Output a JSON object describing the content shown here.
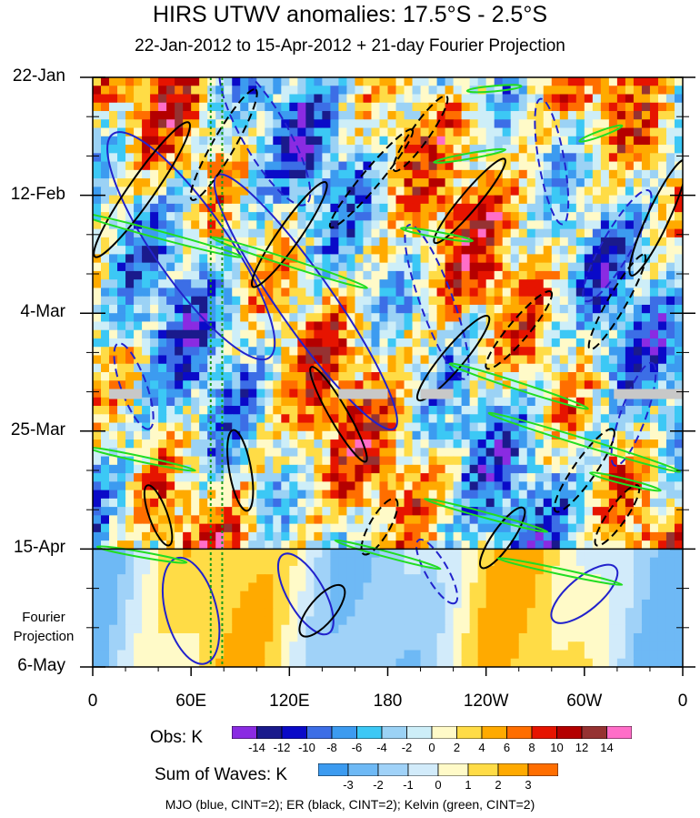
{
  "chart_data": {
    "type": "heatmap",
    "title": "HIRS UTWV anomalies: 17.5°S - 2.5°S",
    "subtitle": "22-Jan-2012 to 15-Apr-2012 + 21-day Fourier Projection",
    "y_tick_labels": [
      "22-Jan",
      "12-Feb",
      "4-Mar",
      "25-Mar",
      "15-Apr",
      "6-May"
    ],
    "x_tick_labels": [
      "0",
      "60E",
      "120E",
      "180",
      "120W",
      "60W",
      "0"
    ],
    "x_range_deg": [
      0,
      360
    ],
    "y_range_days": [
      0,
      105
    ],
    "y_tick_days": [
      0,
      21,
      42,
      63,
      84,
      105
    ],
    "x_tick_deg": [
      0,
      60,
      120,
      180,
      240,
      300,
      360
    ],
    "projection_start_day": 84,
    "fourier_label": [
      "Fourier",
      "Projection"
    ],
    "reference_longitudes_deg": [
      72,
      79
    ],
    "obs_colorbar": {
      "title": "Obs: K",
      "levels": [
        "-14",
        "-12",
        "-10",
        "-8",
        "-6",
        "-4",
        "-2",
        "0",
        "2",
        "4",
        "6",
        "8",
        "10",
        "12",
        "14"
      ],
      "colors": [
        "#8a2be2",
        "#1a1a8c",
        "#0a0ac8",
        "#3c6ee6",
        "#3c9bf0",
        "#3cc8f5",
        "#9bd2f5",
        "#cdeef8",
        "#fffac8",
        "#ffdc46",
        "#ffaa00",
        "#ff6e00",
        "#e61400",
        "#b40000",
        "#963232",
        "#ff6ec8"
      ]
    },
    "waves_colorbar": {
      "title": "Sum of Waves: K",
      "levels": [
        "-3",
        "-2",
        "-1",
        "0",
        "1",
        "2",
        "3"
      ],
      "colors": [
        "#3c9bf0",
        "#6eb9f5",
        "#a0d2f8",
        "#d2ebfa",
        "#fffac8",
        "#ffdc46",
        "#ffaa00",
        "#ff6e00"
      ]
    },
    "contour_series": [
      {
        "name": "MJO",
        "color": "#2222cc",
        "cint": 2
      },
      {
        "name": "ER",
        "color": "#000000",
        "cint": 2
      },
      {
        "name": "Kelvin",
        "color": "#22dd22",
        "cint": 2
      }
    ]
  },
  "footer": "MJO (blue, CINT=2); ER (black, CINT=2); Kelvin (green, CINT=2)"
}
